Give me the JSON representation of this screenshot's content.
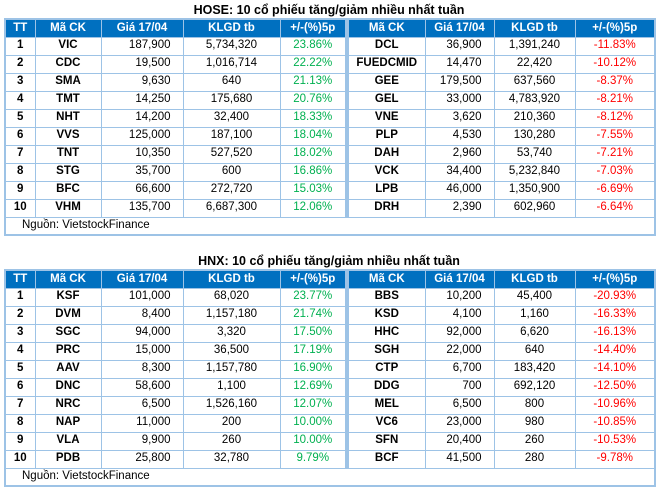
{
  "colors": {
    "header_bg": "#0070C0",
    "header_text": "#FFFFFF",
    "grid": "#9DC3E6",
    "positive": "#00B050",
    "negative": "#FF0000",
    "text": "#000000"
  },
  "chart_data": [
    {
      "type": "table",
      "title": "HOSE: 10 cổ phiếu tăng/giảm nhiều nhất tuần",
      "source": "Nguồn: VietstockFinance",
      "columns": [
        "TT",
        "Mã CK",
        "Giá 17/04",
        "KLGD tb",
        "+/-(%)5p",
        "Mã CK",
        "Giá 17/04",
        "KLGD tb",
        "+/-(%)5p"
      ],
      "rows": [
        [
          "1",
          "VIC",
          "187,900",
          "5,734,320",
          "23.86%",
          "DCL",
          "36,900",
          "1,391,240",
          "-11.83%"
        ],
        [
          "2",
          "CDC",
          "19,500",
          "1,016,714",
          "22.22%",
          "FUEDCMID",
          "14,470",
          "22,420",
          "-10.12%"
        ],
        [
          "3",
          "SMA",
          "9,630",
          "640",
          "21.13%",
          "GEE",
          "179,500",
          "637,560",
          "-8.37%"
        ],
        [
          "4",
          "TMT",
          "14,250",
          "175,680",
          "20.76%",
          "GEL",
          "33,000",
          "4,783,920",
          "-8.21%"
        ],
        [
          "5",
          "NHT",
          "14,200",
          "32,400",
          "18.33%",
          "VNE",
          "3,620",
          "210,360",
          "-8.12%"
        ],
        [
          "6",
          "VVS",
          "125,000",
          "187,100",
          "18.04%",
          "PLP",
          "4,530",
          "130,280",
          "-7.55%"
        ],
        [
          "7",
          "TNT",
          "10,350",
          "527,520",
          "18.02%",
          "DAH",
          "2,960",
          "53,740",
          "-7.21%"
        ],
        [
          "8",
          "STG",
          "35,700",
          "600",
          "16.86%",
          "VCK",
          "34,400",
          "5,232,840",
          "-7.03%"
        ],
        [
          "9",
          "BFC",
          "66,600",
          "272,720",
          "15.03%",
          "LPB",
          "46,000",
          "1,350,900",
          "-6.69%"
        ],
        [
          "10",
          "VHM",
          "135,700",
          "6,687,300",
          "12.06%",
          "DRH",
          "2,390",
          "602,960",
          "-6.64%"
        ]
      ]
    },
    {
      "type": "table",
      "title": "HNX: 10 cổ phiếu tăng/giảm nhiều nhất tuần",
      "source": "Nguồn: VietstockFinance",
      "columns": [
        "TT",
        "Mã CK",
        "Giá 17/04",
        "KLGD tb",
        "+/-(%)5p",
        "Mã CK",
        "Giá 17/04",
        "KLGD tb",
        "+/-(%)5p"
      ],
      "rows": [
        [
          "1",
          "KSF",
          "101,000",
          "68,020",
          "23.77%",
          "BBS",
          "10,200",
          "45,400",
          "-20.93%"
        ],
        [
          "2",
          "DVM",
          "8,400",
          "1,157,180",
          "21.74%",
          "KSD",
          "4,100",
          "1,160",
          "-16.33%"
        ],
        [
          "3",
          "SGC",
          "94,000",
          "3,320",
          "17.50%",
          "HHC",
          "92,000",
          "6,620",
          "-16.13%"
        ],
        [
          "4",
          "PRC",
          "15,000",
          "36,500",
          "17.19%",
          "SGH",
          "22,000",
          "640",
          "-14.40%"
        ],
        [
          "5",
          "AAV",
          "8,300",
          "1,157,780",
          "16.90%",
          "CTP",
          "6,700",
          "183,420",
          "-14.10%"
        ],
        [
          "6",
          "DNC",
          "58,600",
          "1,100",
          "12.69%",
          "DDG",
          "700",
          "692,120",
          "-12.50%"
        ],
        [
          "7",
          "NRC",
          "6,500",
          "1,526,160",
          "12.07%",
          "MEL",
          "6,500",
          "800",
          "-10.96%"
        ],
        [
          "8",
          "NAP",
          "11,000",
          "200",
          "10.00%",
          "VC6",
          "23,000",
          "980",
          "-10.85%"
        ],
        [
          "9",
          "VLA",
          "9,900",
          "260",
          "10.00%",
          "SFN",
          "20,400",
          "260",
          "-10.53%"
        ],
        [
          "10",
          "PDB",
          "25,800",
          "32,780",
          "9.79%",
          "BCF",
          "41,500",
          "280",
          "-9.78%"
        ]
      ]
    }
  ]
}
